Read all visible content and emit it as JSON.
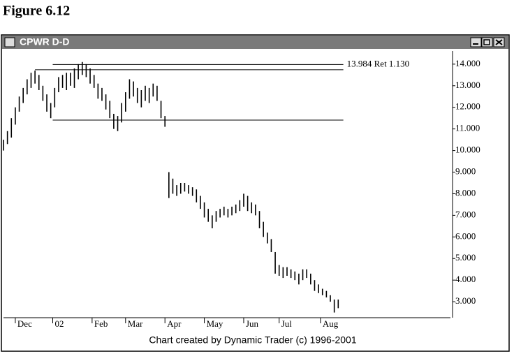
{
  "figure_label": "Figure 6.12",
  "chart_data": {
    "type": "ohlc",
    "title": "CPWR D-D",
    "footer": "Chart created by Dynamic Trader (c) 1996-2001",
    "color": "#000000",
    "x": [
      0,
      2,
      4,
      6,
      8,
      10,
      12,
      14,
      16,
      18,
      20,
      22,
      24,
      26,
      28,
      30,
      32,
      34,
      36,
      38,
      40,
      42,
      44,
      46,
      48,
      50,
      52,
      54,
      56,
      58,
      60,
      62,
      64,
      66,
      68,
      70,
      72,
      74,
      76,
      78,
      80,
      82,
      84,
      86,
      88,
      90,
      92,
      94,
      96,
      98,
      100,
      102,
      104,
      106,
      108,
      110,
      112,
      114,
      116,
      118,
      120,
      122,
      124,
      126,
      128,
      130,
      132,
      134,
      136,
      138,
      140,
      142,
      144,
      146,
      148,
      150,
      152,
      154,
      156,
      158,
      160,
      162,
      164,
      166,
      168,
      170
    ],
    "high": [
      10.5,
      10.9,
      11.5,
      12.0,
      12.5,
      12.9,
      13.3,
      13.6,
      13.7,
      13.5,
      13.0,
      12.6,
      12.2,
      12.9,
      13.4,
      13.5,
      13.6,
      13.6,
      13.8,
      14.0,
      14.1,
      14.0,
      13.8,
      13.5,
      13.1,
      12.9,
      12.6,
      12.3,
      11.7,
      11.6,
      12.2,
      12.7,
      13.3,
      13.2,
      12.9,
      12.8,
      13.0,
      12.9,
      13.1,
      13.0,
      12.3,
      11.6,
      9.0,
      8.7,
      8.4,
      8.5,
      8.5,
      8.4,
      8.3,
      8.2,
      7.9,
      7.6,
      7.3,
      7.0,
      7.2,
      7.3,
      7.4,
      7.3,
      7.4,
      7.5,
      7.7,
      8.0,
      7.9,
      7.6,
      7.5,
      7.2,
      6.7,
      6.2,
      5.9,
      5.3,
      4.7,
      4.6,
      4.6,
      4.5,
      4.4,
      4.3,
      4.5,
      4.5,
      4.3,
      4.0,
      3.8,
      3.6,
      3.5,
      3.3,
      3.1,
      3.1
    ],
    "low": [
      10.0,
      10.3,
      10.6,
      11.2,
      11.8,
      12.2,
      12.6,
      12.9,
      13.1,
      12.8,
      12.3,
      11.8,
      11.5,
      12.0,
      12.7,
      12.9,
      12.8,
      13.0,
      12.9,
      13.3,
      13.5,
      13.4,
      13.1,
      12.9,
      12.4,
      12.3,
      11.9,
      11.5,
      11.0,
      10.9,
      11.3,
      11.8,
      12.4,
      12.5,
      12.2,
      12.0,
      12.3,
      12.2,
      12.5,
      12.3,
      11.5,
      11.1,
      7.8,
      8.0,
      7.9,
      8.0,
      8.1,
      8.0,
      7.9,
      7.6,
      7.3,
      6.9,
      6.7,
      6.4,
      6.7,
      6.9,
      7.0,
      6.9,
      7.0,
      7.1,
      7.2,
      7.4,
      7.2,
      7.1,
      7.0,
      6.4,
      6.0,
      5.7,
      5.3,
      4.3,
      4.2,
      4.1,
      4.2,
      4.1,
      4.0,
      3.8,
      4.0,
      4.1,
      3.8,
      3.5,
      3.4,
      3.3,
      3.2,
      3.0,
      2.5,
      2.7
    ],
    "xlim": [
      0,
      227
    ],
    "ylim": [
      2.26,
      14.61
    ],
    "xticks": [
      {
        "value": 6,
        "label": "Dec"
      },
      {
        "value": 25,
        "label": "02"
      },
      {
        "value": 45,
        "label": "Feb"
      },
      {
        "value": 62,
        "label": "Mar"
      },
      {
        "value": 82,
        "label": "Apr"
      },
      {
        "value": 102,
        "label": "May"
      },
      {
        "value": 122,
        "label": "Jun"
      },
      {
        "value": 140,
        "label": "Jul"
      },
      {
        "value": 161,
        "label": "Aug"
      }
    ],
    "yticks": [
      {
        "value": 14,
        "label": "14.000"
      },
      {
        "value": 13,
        "label": "13.000"
      },
      {
        "value": 12,
        "label": "12.000"
      },
      {
        "value": 11,
        "label": "11.000"
      },
      {
        "value": 10,
        "label": "10.000"
      },
      {
        "value": 9,
        "label": "9.000"
      },
      {
        "value": 8,
        "label": "8.000"
      },
      {
        "value": 7,
        "label": "7.000"
      },
      {
        "value": 6,
        "label": "6.000"
      },
      {
        "value": 5,
        "label": "5.000"
      },
      {
        "value": 4,
        "label": "4.000"
      },
      {
        "value": 3,
        "label": "3.000"
      }
    ],
    "annotations": [
      {
        "y": 13.984,
        "x0": 25,
        "x1": 172.6,
        "label": "13.984 Ret 1.130"
      },
      {
        "y": 13.74,
        "x0": 16,
        "x1": 172.6
      },
      {
        "y": 11.41,
        "x0": 25,
        "x1": 172.6
      }
    ]
  }
}
